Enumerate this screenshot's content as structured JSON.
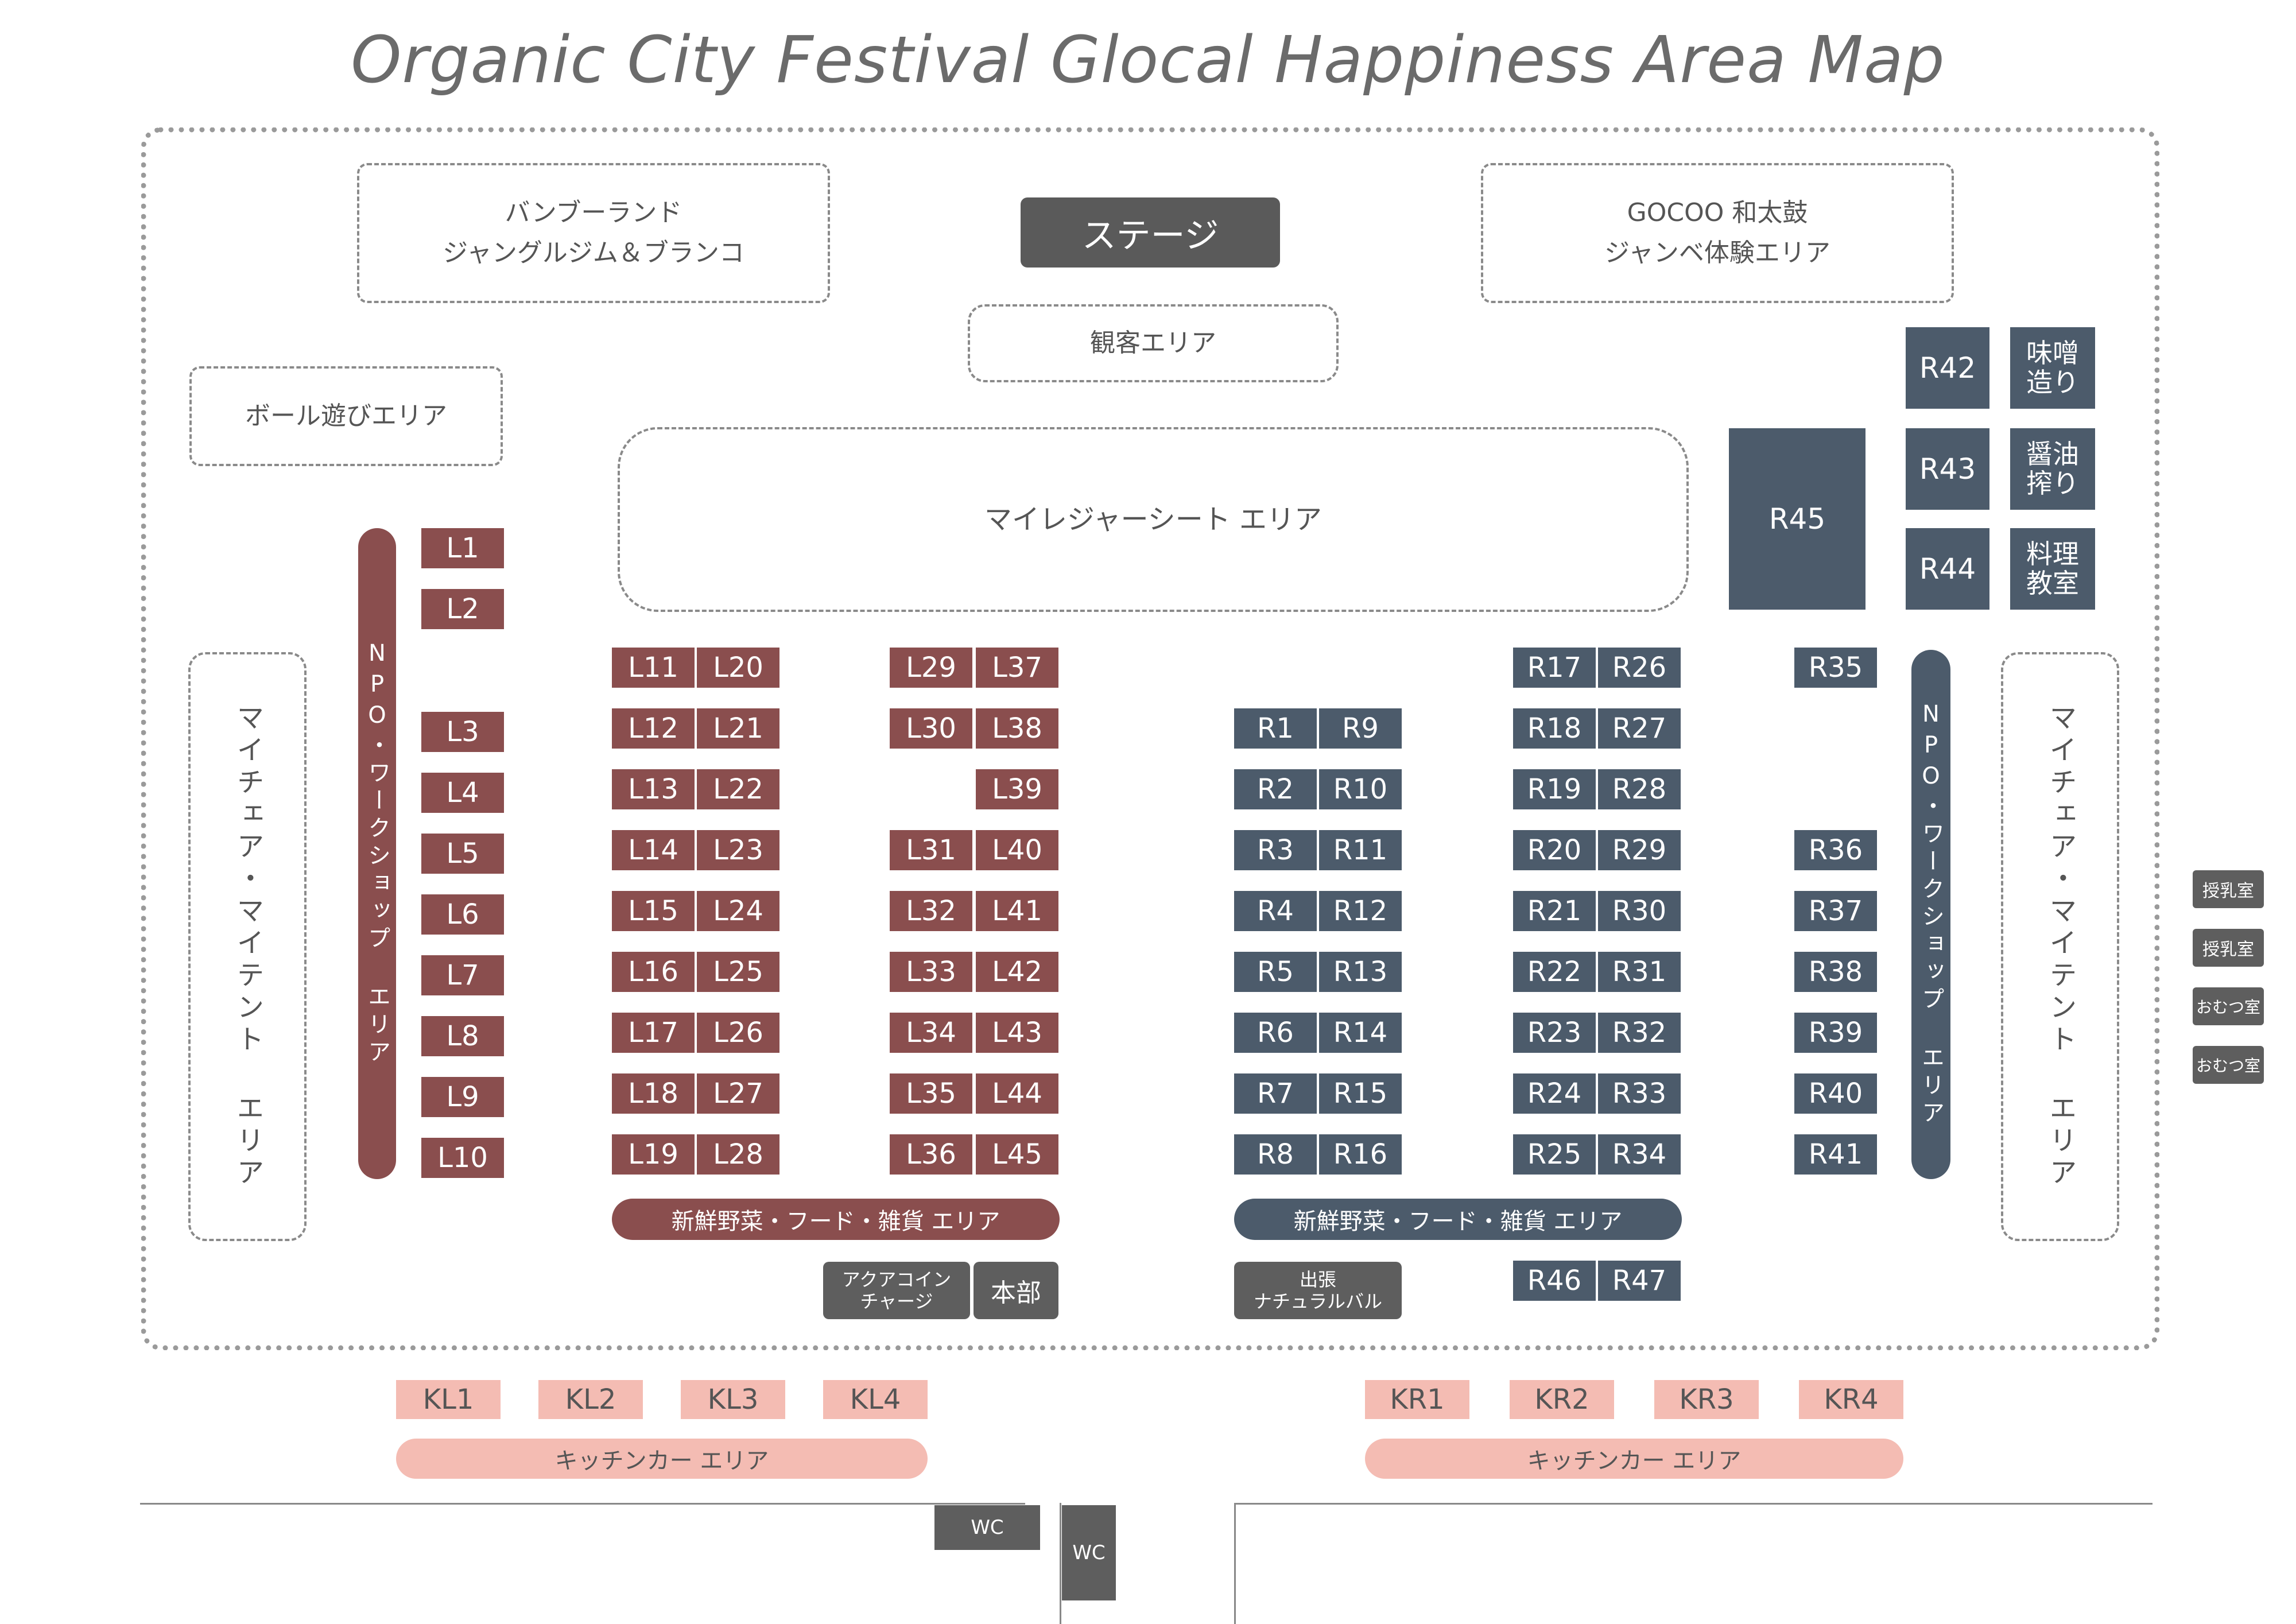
{
  "title": "Organic City Festival Glocal Happiness Area Map",
  "colors": {
    "left_booth": "#8a4e4e",
    "right_booth": "#4c5b6b",
    "kitchen": "#f4bcb3",
    "facility": "#5e5e5e"
  },
  "areas": {
    "bamboo_line1": "バンブーランド",
    "bamboo_line2": "ジャングルジム＆ブランコ",
    "stage": "ステージ",
    "gocoo_line1": "GOCOO 和太鼓",
    "gocoo_line2": "ジャンベ体験エリア",
    "audience": "観客エリア",
    "ball": "ボール遊びエリア",
    "leisure": "マイレジャーシート エリア",
    "my_chair_left": "マイチェア・マイテント エリア",
    "my_chair_right": "マイチェア・マイテント エリア",
    "npo_left": "NPO・ワークショップ エリア",
    "npo_right": "NPO・ワークショップ エリア",
    "fresh_left": "新鮮野菜・フード・雑貨 エリア",
    "fresh_right": "新鮮野菜・フード・雑貨 エリア",
    "aqua_line1": "アクアコイン",
    "aqua_line2": "チャージ",
    "honbu": "本部",
    "shuccho_line1": "出張",
    "shuccho_line2": "ナチュラルバル",
    "kitchen_left": "キッチンカー エリア",
    "kitchen_right": "キッチンカー エリア",
    "wc1": "WC",
    "wc2": "WC"
  },
  "special": {
    "miso_l1": "味噌",
    "miso_l2": "造り",
    "shoyu_l1": "醤油",
    "shoyu_l2": "搾り",
    "ryori_l1": "料理",
    "ryori_l2": "教室"
  },
  "side_rooms": [
    "授乳室",
    "授乳室",
    "おむつ室",
    "おむつ室"
  ],
  "booths": {
    "L1": "L1",
    "L2": "L2",
    "L3": "L3",
    "L4": "L4",
    "L5": "L5",
    "L6": "L6",
    "L7": "L7",
    "L8": "L8",
    "L9": "L9",
    "L10": "L10",
    "L11": "L11",
    "L12": "L12",
    "L13": "L13",
    "L14": "L14",
    "L15": "L15",
    "L16": "L16",
    "L17": "L17",
    "L18": "L18",
    "L19": "L19",
    "L20": "L20",
    "L21": "L21",
    "L22": "L22",
    "L23": "L23",
    "L24": "L24",
    "L25": "L25",
    "L26": "L26",
    "L27": "L27",
    "L28": "L28",
    "L29": "L29",
    "L30": "L30",
    "L31": "L31",
    "L32": "L32",
    "L33": "L33",
    "L34": "L34",
    "L35": "L35",
    "L36": "L36",
    "L37": "L37",
    "L38": "L38",
    "L39": "L39",
    "L40": "L40",
    "L41": "L41",
    "L42": "L42",
    "L43": "L43",
    "L44": "L44",
    "L45": "L45",
    "R1": "R1",
    "R2": "R2",
    "R3": "R3",
    "R4": "R4",
    "R5": "R5",
    "R6": "R6",
    "R7": "R7",
    "R8": "R8",
    "R9": "R9",
    "R10": "R10",
    "R11": "R11",
    "R12": "R12",
    "R13": "R13",
    "R14": "R14",
    "R15": "R15",
    "R16": "R16",
    "R17": "R17",
    "R18": "R18",
    "R19": "R19",
    "R20": "R20",
    "R21": "R21",
    "R22": "R22",
    "R23": "R23",
    "R24": "R24",
    "R25": "R25",
    "R26": "R26",
    "R27": "R27",
    "R28": "R28",
    "R29": "R29",
    "R30": "R30",
    "R31": "R31",
    "R32": "R32",
    "R33": "R33",
    "R34": "R34",
    "R35": "R35",
    "R36": "R36",
    "R37": "R37",
    "R38": "R38",
    "R39": "R39",
    "R40": "R40",
    "R41": "R41",
    "R42": "R42",
    "R43": "R43",
    "R44": "R44",
    "R45": "R45",
    "R46": "R46",
    "R47": "R47",
    "KL1": "KL1",
    "KL2": "KL2",
    "KL3": "KL3",
    "KL4": "KL4",
    "KR1": "KR1",
    "KR2": "KR2",
    "KR3": "KR3",
    "KR4": "KR4"
  }
}
